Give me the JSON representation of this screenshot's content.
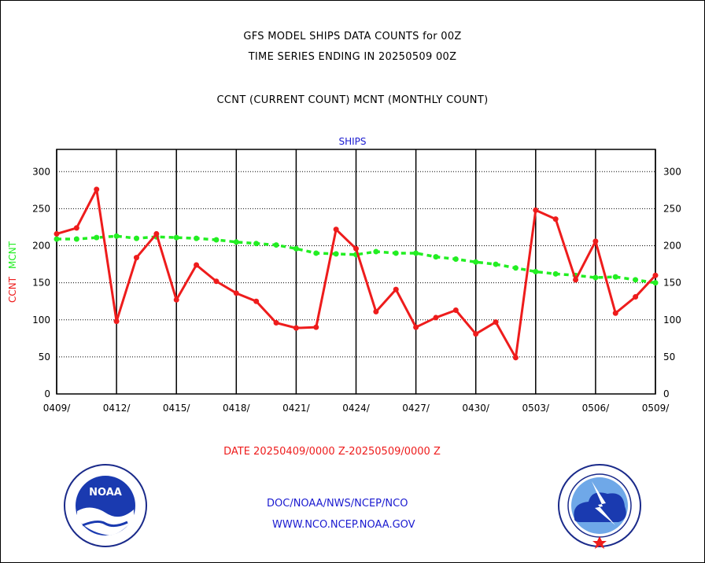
{
  "header": {
    "title_line1": "GFS MODEL SHIPS DATA COUNTS for 00Z",
    "title_line2": "TIME SERIES ENDING IN 20250509 00Z",
    "legend_line": "CCNT (CURRENT COUNT) MCNT (MONTHLY COUNT)"
  },
  "chart_data": {
    "type": "line",
    "title": "SHIPS",
    "xlabel": "DATE 20250409/0000 Z-20250509/0000 Z",
    "ylabel_ccnt": "CCNT",
    "ylabel_mcnt": "MCNT",
    "ylim": [
      0,
      330
    ],
    "yticks": [
      "0",
      "50",
      "100",
      "150",
      "200",
      "250",
      "300"
    ],
    "xlim": [
      0,
      30
    ],
    "xticks": [
      "0409/",
      "0412/",
      "0415/",
      "0418/",
      "0421/",
      "0424/",
      "0427/",
      "0430/",
      "0503/",
      "0506/",
      "0509/"
    ],
    "grid": true,
    "colors": {
      "ccnt": "#ee1c1c",
      "mcnt": "#22ee22"
    },
    "series": [
      {
        "name": "CCNT",
        "x": [
          0,
          1,
          2,
          3,
          4,
          5,
          6,
          7,
          8,
          9,
          10,
          11,
          12,
          13,
          14,
          15,
          16,
          17,
          18,
          19,
          20,
          21,
          22,
          23,
          24,
          25,
          26,
          27,
          28,
          29,
          30
        ],
        "values": [
          216,
          224,
          276,
          98,
          184,
          216,
          127,
          174,
          152,
          136,
          125,
          96,
          89,
          90,
          222,
          196,
          111,
          141,
          90,
          103,
          113,
          81,
          97,
          49,
          248,
          236,
          154,
          206,
          109,
          131,
          160
        ]
      },
      {
        "name": "MCNT",
        "x": [
          0,
          1,
          2,
          3,
          4,
          5,
          6,
          7,
          8,
          9,
          10,
          11,
          12,
          13,
          14,
          15,
          16,
          17,
          18,
          19,
          20,
          21,
          22,
          23,
          24,
          25,
          26,
          27,
          28,
          29,
          30
        ],
        "values": [
          209,
          209,
          211,
          213,
          210,
          212,
          211,
          210,
          208,
          205,
          203,
          201,
          196,
          190,
          189,
          188,
          192,
          190,
          190,
          185,
          182,
          178,
          175,
          170,
          165,
          162,
          160,
          157,
          158,
          154,
          150
        ]
      }
    ]
  },
  "footer": {
    "line1": "DOC/NOAA/NWS/NCEP/NCO",
    "line2": "WWW.NCO.NCEP.NOAA.GOV",
    "noaa_badge": "NOAA",
    "noaa_ring": "NATIONAL OCEANIC AND ATMOSPHERIC ADMINISTRATION",
    "noaa_bottom": "U.S. DEPARTMENT OF COMMERCE",
    "nws_ring": "NATIONAL WEATHER SERVICE"
  }
}
